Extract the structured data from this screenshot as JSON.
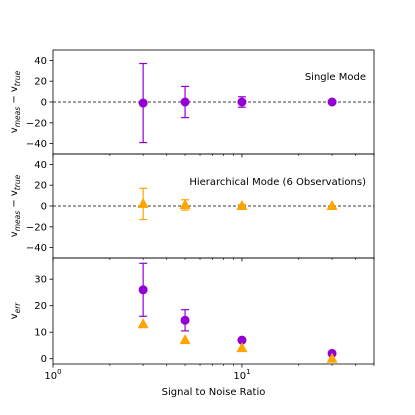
{
  "chart_data": {
    "type": "scatter",
    "x_scale": "log",
    "xlim": [
      1,
      50
    ],
    "xlabel": "Signal to Noise Ratio",
    "x_ticks": [
      {
        "value": 1,
        "label": "10",
        "sup": "0"
      },
      {
        "value": 10,
        "label": "10",
        "sup": "1"
      }
    ],
    "colors": {
      "single": "#9400D3",
      "hierarchical": "#FFA500"
    },
    "panels": [
      {
        "ylabel": "v",
        "ylabel_sub1": "meas",
        "ylabel_mid": " − v",
        "ylabel_sub2": "true",
        "annotation": "Single Mode",
        "ylim": [
          -50,
          50
        ],
        "yticks": [
          40,
          20,
          0,
          -20,
          -40
        ],
        "ytick_labels": [
          "40",
          "20",
          "0",
          "−20",
          "−40"
        ],
        "hline": 0,
        "series": [
          {
            "marker": "circle",
            "color": "#9400D3",
            "points": [
              {
                "x": 3,
                "y": -1,
                "err": 38
              },
              {
                "x": 5,
                "y": 0,
                "err": 15
              },
              {
                "x": 10,
                "y": 0,
                "err": 5
              },
              {
                "x": 30,
                "y": 0,
                "err": 0
              }
            ]
          }
        ]
      },
      {
        "ylabel": "v",
        "ylabel_sub1": "meas",
        "ylabel_mid": " − v",
        "ylabel_sub2": "true",
        "annotation": "Hierarchical Mode (6 Observations)",
        "ylim": [
          -50,
          50
        ],
        "yticks": [
          40,
          20,
          0,
          -20,
          -40
        ],
        "ytick_labels": [
          "40",
          "20",
          "0",
          "−20",
          "−40"
        ],
        "hline": 0,
        "series": [
          {
            "marker": "triangle",
            "color": "#FFA500",
            "points": [
              {
                "x": 3,
                "y": 2,
                "err": 15
              },
              {
                "x": 5,
                "y": 1,
                "err": 5
              },
              {
                "x": 10,
                "y": 0,
                "err": 1.5
              },
              {
                "x": 30,
                "y": 0,
                "err": 0
              }
            ]
          }
        ]
      },
      {
        "ylabel": "v",
        "ylabel_sub1": "err",
        "ylabel_mid": "",
        "ylabel_sub2": "",
        "annotation": "",
        "ylim": [
          -2,
          38
        ],
        "yticks": [
          30,
          20,
          10,
          0
        ],
        "ytick_labels": [
          "30",
          "20",
          "10",
          "0"
        ],
        "hline": null,
        "series": [
          {
            "marker": "circle",
            "color": "#9400D3",
            "points": [
              {
                "x": 3,
                "y": 26,
                "err": 10
              },
              {
                "x": 5,
                "y": 14.5,
                "err": 4
              },
              {
                "x": 10,
                "y": 7,
                "err": 0
              },
              {
                "x": 30,
                "y": 2,
                "err": 0
              }
            ]
          },
          {
            "marker": "triangle",
            "color": "#FFA500",
            "points": [
              {
                "x": 3,
                "y": 13,
                "err": 0
              },
              {
                "x": 5,
                "y": 7,
                "err": 0
              },
              {
                "x": 10,
                "y": 4,
                "err": 0
              },
              {
                "x": 30,
                "y": 0,
                "err": 0
              }
            ]
          }
        ]
      }
    ]
  }
}
